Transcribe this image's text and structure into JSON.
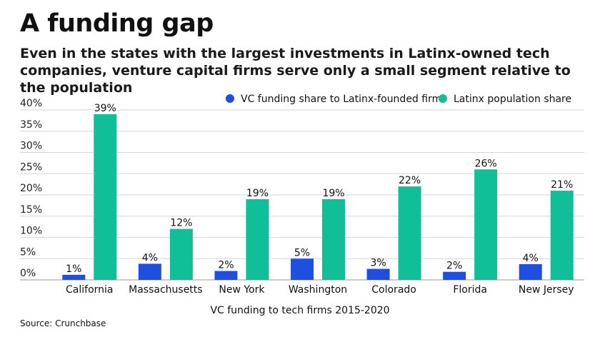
{
  "title": "A funding gap",
  "subtitle": "Even in the states with the largest investments in Latinx-owned tech companies, venture capital firms serve only a small segment relative to the population",
  "source": "Source: Crunchbase",
  "colors": {
    "vc": "#1f4fe0",
    "pop": "#10bf98",
    "grid": "#d6d6d6"
  },
  "chart_data": {
    "type": "bar",
    "categories": [
      "California",
      "Massachusetts",
      "New York",
      "Washington",
      "Colorado",
      "Florida",
      "New Jersey"
    ],
    "series": [
      {
        "name": "VC funding share to Latinx-founded firms",
        "values": [
          1.2,
          3.8,
          2.1,
          5.0,
          2.6,
          1.9,
          3.7
        ],
        "labels": [
          "1%",
          "4%",
          "2%",
          "5%",
          "3%",
          "2%",
          "4%"
        ]
      },
      {
        "name": "Latinx population share",
        "values": [
          39,
          12,
          19,
          19,
          22,
          26,
          21
        ],
        "labels": [
          "39%",
          "12%",
          "19%",
          "19%",
          "22%",
          "26%",
          "21%"
        ]
      }
    ],
    "ylim": [
      0,
      40
    ],
    "yticks": [
      0,
      5,
      10,
      15,
      20,
      25,
      30,
      35,
      40
    ],
    "ytick_labels": [
      "0%",
      "5%",
      "10%",
      "15%",
      "20%",
      "25%",
      "30%",
      "35%",
      "40%"
    ],
    "xlabel": "VC funding to tech firms 2015-2020",
    "ylabel": "",
    "grid": true,
    "legend": "top-right"
  }
}
